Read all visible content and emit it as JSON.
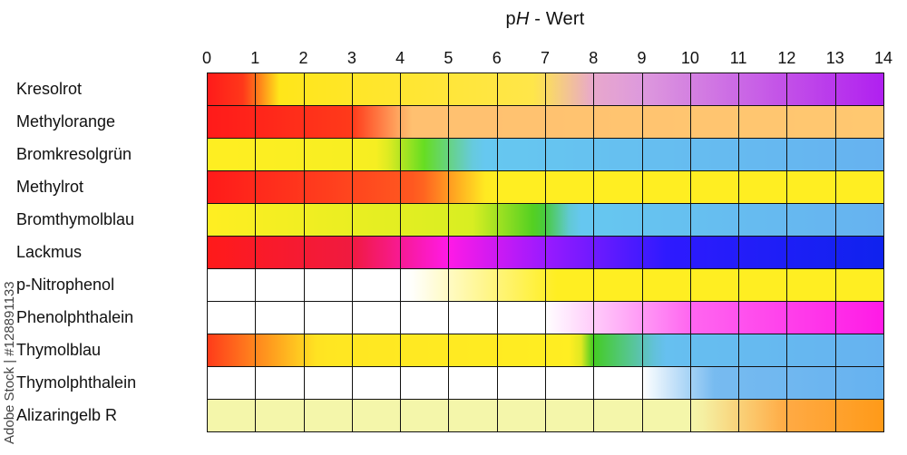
{
  "watermark": "Adobe Stock | #128891133",
  "chart_data": {
    "type": "heatmap",
    "title_parts": [
      "p",
      "H",
      " - Wert"
    ],
    "x_ticks": [
      "0",
      "1",
      "2",
      "3",
      "4",
      "5",
      "6",
      "7",
      "8",
      "9",
      "10",
      "11",
      "12",
      "13",
      "14"
    ],
    "xlim": [
      0,
      14
    ],
    "grid": true,
    "rows": [
      {
        "name": "Kresolrot",
        "stops": [
          {
            "ph": 0,
            "color": "#ff1a1a"
          },
          {
            "ph": 0.8,
            "color": "#ff3a1a"
          },
          {
            "ph": 1.5,
            "color": "#ffe61a"
          },
          {
            "ph": 6.8,
            "color": "#ffe64a"
          },
          {
            "ph": 8,
            "color": "#e8a8cc"
          },
          {
            "ph": 9,
            "color": "#dd99dd"
          },
          {
            "ph": 14,
            "color": "#b020f0"
          }
        ]
      },
      {
        "name": "Methylorange",
        "stops": [
          {
            "ph": 0,
            "color": "#ff1a1a"
          },
          {
            "ph": 3,
            "color": "#ff3a1a"
          },
          {
            "ph": 4.2,
            "color": "#ffc070"
          },
          {
            "ph": 14,
            "color": "#ffc870"
          }
        ]
      },
      {
        "name": "Bromkresolgrün",
        "stops": [
          {
            "ph": 0,
            "color": "#ffee22"
          },
          {
            "ph": 3.6,
            "color": "#f6ee22"
          },
          {
            "ph": 4.5,
            "color": "#66dd22"
          },
          {
            "ph": 5.6,
            "color": "#66c8f0"
          },
          {
            "ph": 14,
            "color": "#66b2f0"
          }
        ]
      },
      {
        "name": "Methylrot",
        "stops": [
          {
            "ph": 0,
            "color": "#ff1a1a"
          },
          {
            "ph": 4.4,
            "color": "#ff5a20"
          },
          {
            "ph": 5.8,
            "color": "#ffee22"
          },
          {
            "ph": 14,
            "color": "#ffee22"
          }
        ]
      },
      {
        "name": "Bromthymolblau",
        "stops": [
          {
            "ph": 0,
            "color": "#ffee22"
          },
          {
            "ph": 5.5,
            "color": "#d8ee22"
          },
          {
            "ph": 6.9,
            "color": "#44cc22"
          },
          {
            "ph": 7.6,
            "color": "#66c8f0"
          },
          {
            "ph": 14,
            "color": "#66b2f0"
          }
        ]
      },
      {
        "name": "Lackmus",
        "stops": [
          {
            "ph": 0,
            "color": "#ff1a1a"
          },
          {
            "ph": 3,
            "color": "#f01a40"
          },
          {
            "ph": 5,
            "color": "#ff1ae6"
          },
          {
            "ph": 7,
            "color": "#9a1aff"
          },
          {
            "ph": 9.5,
            "color": "#2e1aff"
          },
          {
            "ph": 14,
            "color": "#0f22ee"
          }
        ]
      },
      {
        "name": "p-Nitrophenol",
        "stops": [
          {
            "ph": 0,
            "color": "#ffffff"
          },
          {
            "ph": 4.2,
            "color": "#ffffff"
          },
          {
            "ph": 7.2,
            "color": "#ffee22"
          },
          {
            "ph": 14,
            "color": "#ffee22"
          }
        ]
      },
      {
        "name": "Phenolphthalein",
        "stops": [
          {
            "ph": 0,
            "color": "#ffffff"
          },
          {
            "ph": 7,
            "color": "#ffffff"
          },
          {
            "ph": 10,
            "color": "#ff66f0"
          },
          {
            "ph": 14,
            "color": "#ff1ae6"
          }
        ]
      },
      {
        "name": "Thymolblau",
        "stops": [
          {
            "ph": 0,
            "color": "#ff3a1a"
          },
          {
            "ph": 2.3,
            "color": "#ffe622"
          },
          {
            "ph": 7.7,
            "color": "#ffee22"
          },
          {
            "ph": 8,
            "color": "#44cc22"
          },
          {
            "ph": 9.4,
            "color": "#66c0f0"
          },
          {
            "ph": 14,
            "color": "#66b2f0"
          }
        ]
      },
      {
        "name": "Thymolphthalein",
        "stops": [
          {
            "ph": 0,
            "color": "#ffffff"
          },
          {
            "ph": 9,
            "color": "#ffffff"
          },
          {
            "ph": 10.5,
            "color": "#77bbf0"
          },
          {
            "ph": 14,
            "color": "#66b2f0"
          }
        ]
      },
      {
        "name": "Alizaringelb R",
        "stops": [
          {
            "ph": 0,
            "color": "#f4f6aa"
          },
          {
            "ph": 10.1,
            "color": "#f4f6aa"
          },
          {
            "ph": 12,
            "color": "#ffaa44"
          },
          {
            "ph": 14,
            "color": "#ff9a18"
          }
        ]
      }
    ]
  }
}
